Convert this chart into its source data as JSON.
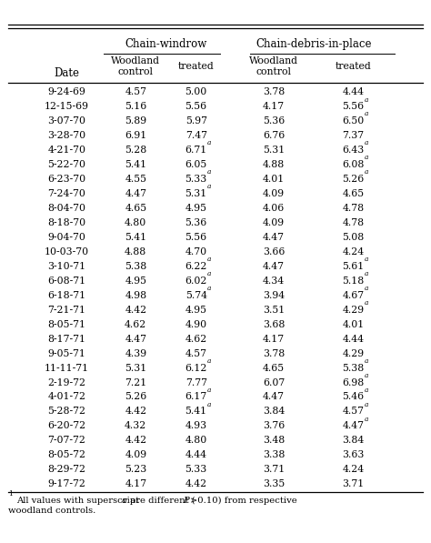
{
  "col_headers": [
    "Chain-windrow",
    "Chain-debris-in-place"
  ],
  "sub_headers": [
    "Woodland\ncontrol",
    "treated",
    "Woodland\ncontrol",
    "treated"
  ],
  "date_col": "Date",
  "rows": [
    [
      "9-24-69",
      "4.57",
      "5.00",
      "3.78",
      "4.44"
    ],
    [
      "12-15-69",
      "5.16",
      "5.56",
      "4.17",
      "5.56^a"
    ],
    [
      "3-07-70",
      "5.89",
      "5.97",
      "5.36",
      "6.50^a"
    ],
    [
      "3-28-70",
      "6.91",
      "7.47",
      "6.76",
      "7.37"
    ],
    [
      "4-21-70",
      "5.28",
      "6.71^a",
      "5.31",
      "6.43^a"
    ],
    [
      "5-22-70",
      "5.41",
      "6.05",
      "4.88",
      "6.08^a"
    ],
    [
      "6-23-70",
      "4.55",
      "5.33^a",
      "4.01",
      "5.26^a"
    ],
    [
      "7-24-70",
      "4.47",
      "5.31^a",
      "4.09",
      "4.65"
    ],
    [
      "8-04-70",
      "4.65",
      "4.95",
      "4.06",
      "4.78"
    ],
    [
      "8-18-70",
      "4.80",
      "5.36",
      "4.09",
      "4.78"
    ],
    [
      "9-04-70",
      "5.41",
      "5.56",
      "4.47",
      "5.08"
    ],
    [
      "10-03-70",
      "4.88",
      "4.70",
      "3.66",
      "4.24"
    ],
    [
      "3-10-71",
      "5.38",
      "6.22^a",
      "4.47",
      "5.61^a"
    ],
    [
      "6-08-71",
      "4.95",
      "6.02^a",
      "4.34",
      "5.18^a"
    ],
    [
      "6-18-71",
      "4.98",
      "5.74^a",
      "3.94",
      "4.67^a"
    ],
    [
      "7-21-71",
      "4.42",
      "4.95",
      "3.51",
      "4.29^a"
    ],
    [
      "8-05-71",
      "4.62",
      "4.90",
      "3.68",
      "4.01"
    ],
    [
      "8-17-71",
      "4.47",
      "4.62",
      "4.17",
      "4.44"
    ],
    [
      "9-05-71",
      "4.39",
      "4.57",
      "3.78",
      "4.29"
    ],
    [
      "11-11-71",
      "5.31",
      "6.12^a",
      "4.65",
      "5.38^a"
    ],
    [
      "2-19-72",
      "7.21",
      "7.77",
      "6.07",
      "6.98^a"
    ],
    [
      "4-01-72",
      "5.26",
      "6.17^a",
      "4.47",
      "5.46^a"
    ],
    [
      "5-28-72",
      "4.42",
      "5.41^a",
      "3.84",
      "4.57^a"
    ],
    [
      "6-20-72",
      "4.32",
      "4.93",
      "3.76",
      "4.47^a"
    ],
    [
      "7-07-72",
      "4.42",
      "4.80",
      "3.48",
      "3.84"
    ],
    [
      "8-05-72",
      "4.09",
      "4.44",
      "3.38",
      "3.63"
    ],
    [
      "8-29-72",
      "5.23",
      "5.33",
      "3.71",
      "4.24"
    ],
    [
      "9-17-72",
      "4.17",
      "4.42",
      "3.35",
      "3.71"
    ]
  ],
  "footnote_sup": "1",
  "footnote_line1": "All values with superscript ",
  "footnote_italic": "a",
  "footnote_line1b": " are different (",
  "footnote_italic2": "P",
  "footnote_line1c": ">0.10) from respective",
  "footnote_line2": "woodland controls."
}
